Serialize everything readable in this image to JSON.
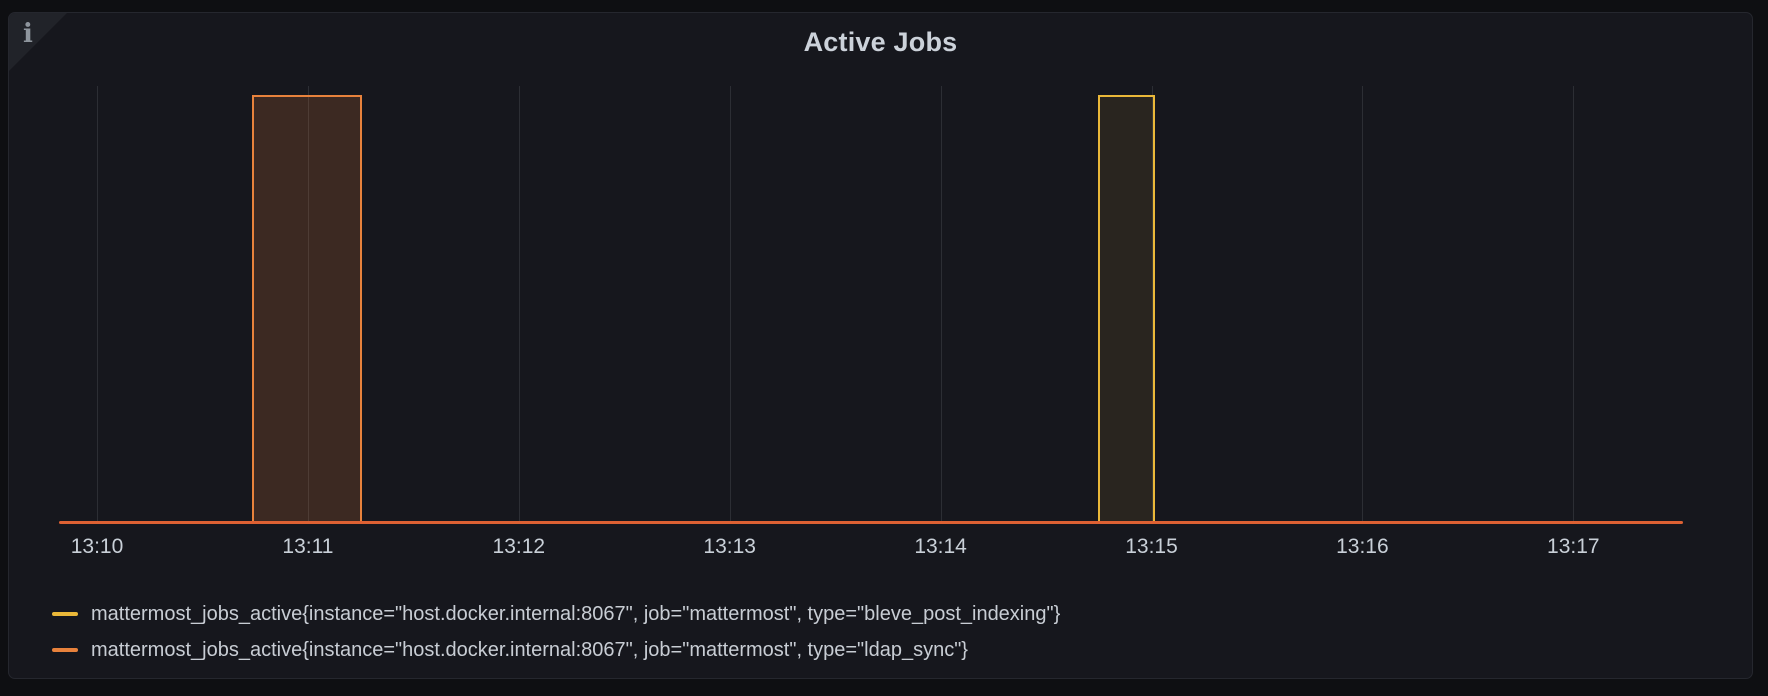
{
  "panel": {
    "title": "Active Jobs",
    "info_corner_glyph": "i"
  },
  "colors": {
    "page_bg": "#0e0f12",
    "panel_bg": "#16171d",
    "panel_border": "#25272e",
    "grid_line": "#2c2e34",
    "axis_text": "#c9d0d8",
    "title_text": "#ccd2da",
    "legend_text": "#c8cdd4",
    "series_yellow": "#eab839",
    "series_orange": "#e8823c",
    "zero_line_orange": "#dd6133"
  },
  "chart_data": {
    "type": "area",
    "title": "Active Jobs",
    "style": "step-line pulses with translucent fill, grid vertical lines only, no y-axis labels",
    "x_axis": {
      "unit": "time (HH:MM)",
      "visible_start_min": 9.82,
      "visible_end_min": 17.52,
      "ticks": [
        {
          "minute": 10,
          "label": "13:10"
        },
        {
          "minute": 11,
          "label": "13:11"
        },
        {
          "minute": 12,
          "label": "13:12"
        },
        {
          "minute": 13,
          "label": "13:13"
        },
        {
          "minute": 14,
          "label": "13:14"
        },
        {
          "minute": 15,
          "label": "13:15"
        },
        {
          "minute": 16,
          "label": "13:16"
        },
        {
          "minute": 17,
          "label": "13:17"
        }
      ]
    },
    "y_axis": {
      "min": 0,
      "max": 1.02,
      "labels_visible": false
    },
    "series": [
      {
        "name": "mattermost_jobs_active{instance=\"host.docker.internal:8067\", job=\"mattermost\", type=\"bleve_post_indexing\"}",
        "color": "#eab839",
        "fill": "rgba(234,184,57,0.09)",
        "base_value": 0,
        "pulses": [
          {
            "start_time": "13:14:45",
            "end_time": "13:15:01",
            "start_min": 14.75,
            "end_min": 15.01,
            "value": 1
          }
        ]
      },
      {
        "name": "mattermost_jobs_active{instance=\"host.docker.internal:8067\", job=\"mattermost\", type=\"ldap_sync\"}",
        "color": "#e8823c",
        "fill": "rgba(233,130,60,0.18)",
        "base_value": 0,
        "pulses": [
          {
            "start_time": "13:10:44",
            "end_time": "13:11:15",
            "start_min": 10.74,
            "end_min": 11.25,
            "value": 1
          }
        ]
      }
    ],
    "legend_position": "bottom-left"
  },
  "legend": {
    "items": [
      {
        "label": "mattermost_jobs_active{instance=\"host.docker.internal:8067\", job=\"mattermost\", type=\"bleve_post_indexing\"}",
        "color": "#eab839"
      },
      {
        "label": "mattermost_jobs_active{instance=\"host.docker.internal:8067\", job=\"mattermost\", type=\"ldap_sync\"}",
        "color": "#e8823c"
      }
    ]
  }
}
